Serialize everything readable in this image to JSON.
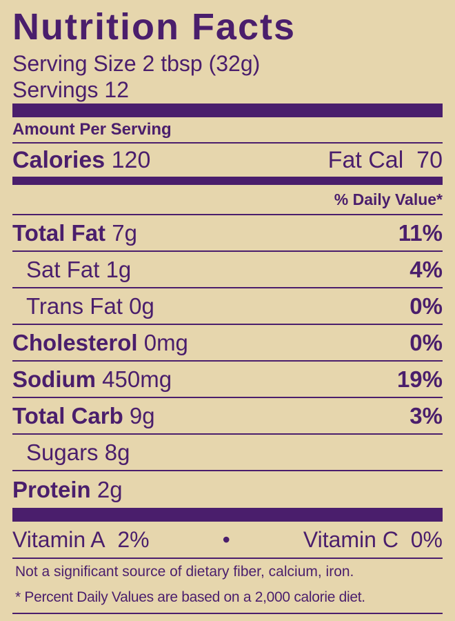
{
  "title": "Nutrition Facts",
  "serving_size": "Serving Size 2 tbsp (32g)",
  "servings": "Servings 12",
  "amount_per_serving": "Amount Per Serving",
  "calories": {
    "label": "Calories",
    "value": "120",
    "fat_label": "Fat Cal",
    "fat_value": "70"
  },
  "daily_value_header": "% Daily Value*",
  "nutrients": [
    {
      "name": "Total Fat",
      "amount": "7g",
      "dv": "11%",
      "bold": true
    },
    {
      "name": "Sat Fat",
      "amount": "1g",
      "dv": "4%",
      "bold": false
    },
    {
      "name": "Trans Fat",
      "amount": "0g",
      "dv": "0%",
      "bold": false
    },
    {
      "name": "Cholesterol",
      "amount": "0mg",
      "dv": "0%",
      "bold": true
    },
    {
      "name": "Sodium",
      "amount": "450mg",
      "dv": "19%",
      "bold": true
    },
    {
      "name": "Total Carb",
      "amount": "9g",
      "dv": "3%",
      "bold": true
    },
    {
      "name": "Sugars",
      "amount": "8g",
      "bold": false
    },
    {
      "name": "Protein",
      "amount": "2g",
      "bold": true
    }
  ],
  "vitamins": {
    "a_label": "Vitamin A",
    "a_value": "2%",
    "separator": "•",
    "c_label": "Vitamin C",
    "c_value": "0%"
  },
  "footnotes": [
    "Not a significant source of dietary fiber, calcium, iron.",
    "* Percent Daily Values are based on a 2,000 calorie diet."
  ]
}
